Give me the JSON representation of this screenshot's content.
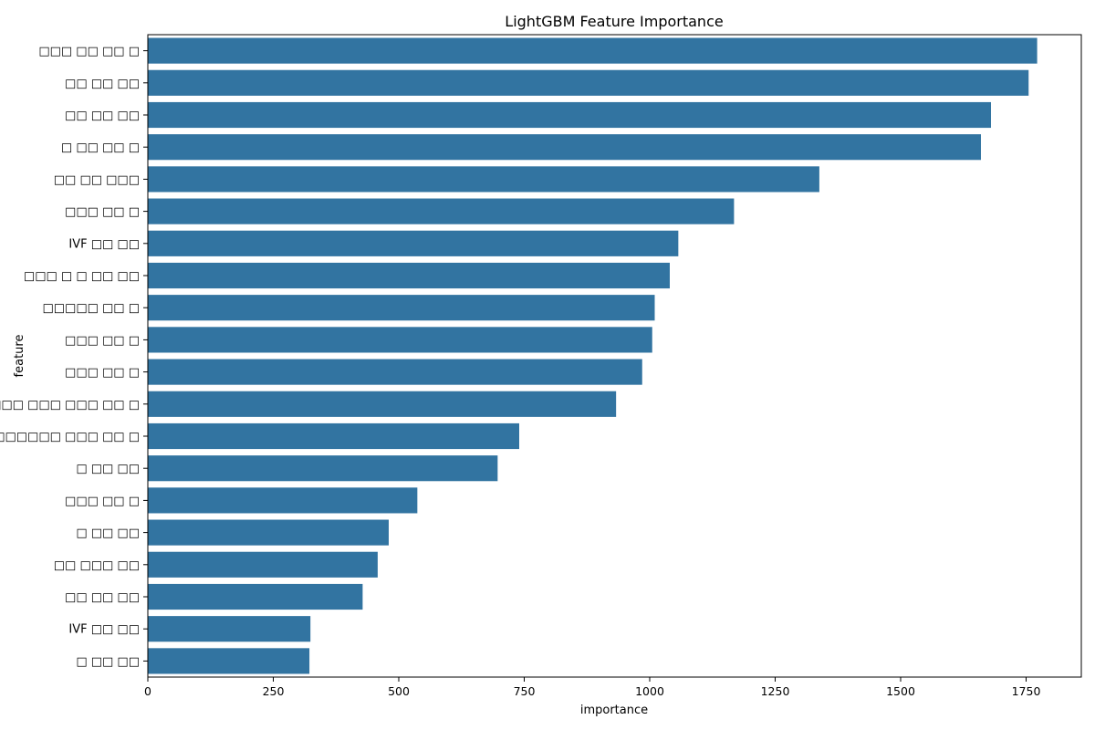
{
  "chart_data": {
    "type": "bar",
    "orientation": "horizontal",
    "title": "LightGBM Feature Importance",
    "xlabel": "importance",
    "ylabel": "feature",
    "categories": [
      "□□□ □□ □□ □",
      "□□ □□ □□",
      "□□ □□ □□",
      "□ □□ □□ □",
      "□□ □□ □□□",
      "□□□ □□ □",
      "IVF □□ □□",
      "□□□ □ □ □□ □□",
      "□□□□□ □□ □",
      "□□□ □□ □",
      "□□□ □□ □",
      "□□□ □□□ □□□ □□ □",
      "□□□□□□ □□□ □□ □",
      "□ □□ □□",
      "□□□ □□ □",
      "□ □□ □□",
      "□□ □□□ □□",
      "□□ □□ □□",
      "IVF □□ □□",
      "□ □□ □□"
    ],
    "values": [
      1772,
      1755,
      1680,
      1660,
      1338,
      1168,
      1057,
      1040,
      1010,
      1005,
      985,
      933,
      740,
      697,
      537,
      480,
      458,
      428,
      324,
      322
    ],
    "xlim": [
      0,
      1860
    ],
    "xticks": [
      0,
      250,
      500,
      750,
      1000,
      1250,
      1500,
      1750
    ],
    "grid": false,
    "bar_color": "#3274a1"
  }
}
